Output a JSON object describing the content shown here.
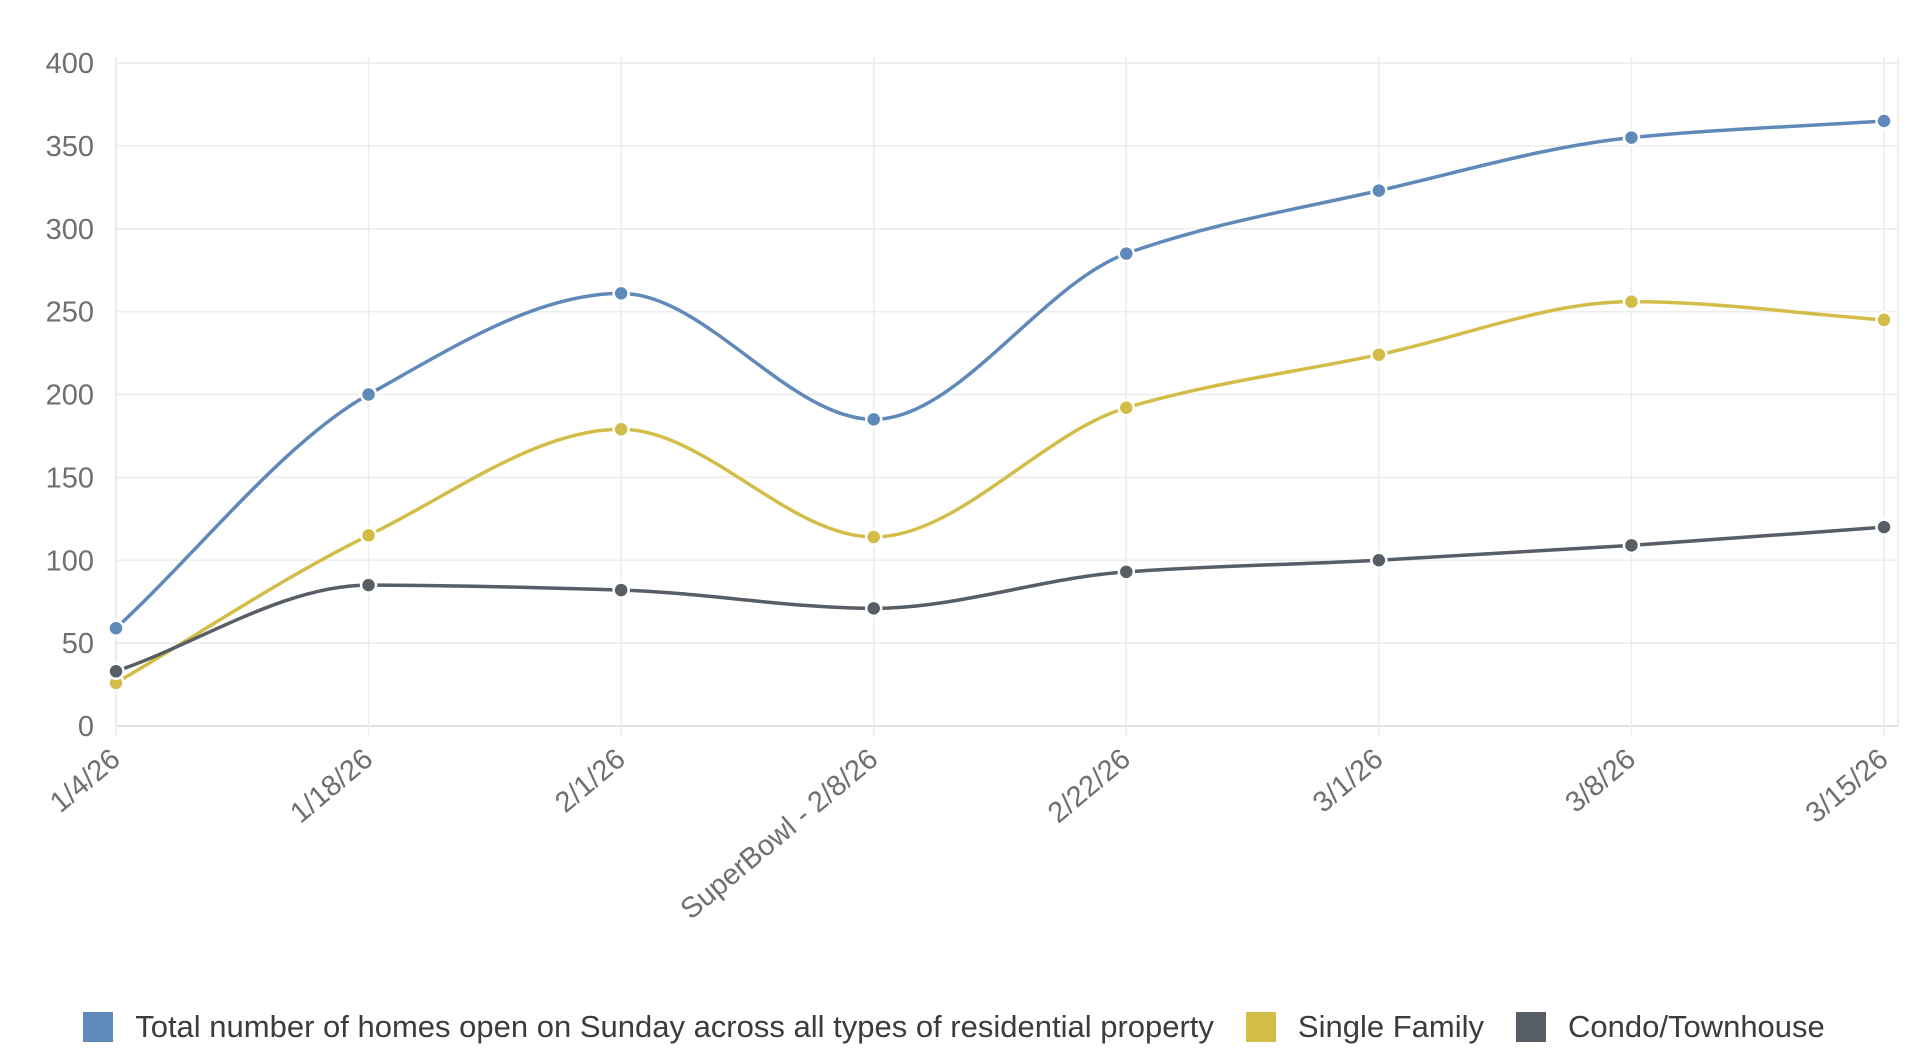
{
  "chart_data": {
    "type": "line",
    "categories": [
      "1/4/26",
      "1/18/26",
      "2/1/26",
      "SuperBowl - 2/8/26",
      "2/22/26",
      "3/1/26",
      "3/8/26",
      "3/15/26"
    ],
    "ylim": [
      0,
      400
    ],
    "yticks": [
      0,
      50,
      100,
      150,
      200,
      250,
      300,
      350,
      400
    ],
    "grid": true,
    "legend_position": "bottom",
    "series": [
      {
        "name": "Total number of homes open on Sunday across all types of residential property",
        "color": "#5f89b8",
        "values": [
          59,
          200,
          261,
          185,
          285,
          323,
          355,
          365
        ]
      },
      {
        "name": "Single Family",
        "color": "#d3bd48",
        "values": [
          26,
          115,
          179,
          114,
          192,
          224,
          256,
          245
        ]
      },
      {
        "name": "Condo/Townhouse",
        "color": "#575e66",
        "values": [
          33,
          85,
          82,
          71,
          93,
          100,
          109,
          120
        ]
      }
    ]
  }
}
